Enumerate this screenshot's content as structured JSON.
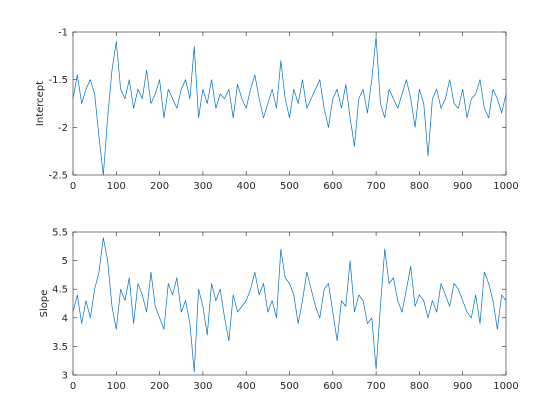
{
  "figure": {
    "line_color": "#0072bd",
    "axis_color": "#262626",
    "background": "#ffffff"
  },
  "chart_data": [
    {
      "type": "line",
      "title": "",
      "xlabel": "",
      "ylabel": "Intercept",
      "xlim": [
        0,
        1000
      ],
      "ylim": [
        -2.5,
        -1
      ],
      "xticks": [
        0,
        100,
        200,
        300,
        400,
        500,
        600,
        700,
        800,
        900,
        1000
      ],
      "xtick_labels": [
        "0",
        "100",
        "200",
        "300",
        "400",
        "500",
        "600",
        "700",
        "800",
        "900",
        "1000"
      ],
      "yticks": [
        -2.5,
        -2,
        -1.5,
        -1
      ],
      "ytick_labels": [
        "-2.5",
        "-2",
        "-1.5",
        "-1"
      ],
      "grid": false,
      "series": [
        {
          "color": "#0072bd",
          "x": [
            0,
            10,
            20,
            30,
            40,
            50,
            60,
            70,
            80,
            90,
            100,
            110,
            120,
            130,
            140,
            150,
            160,
            170,
            180,
            190,
            200,
            210,
            220,
            230,
            240,
            250,
            260,
            270,
            280,
            290,
            300,
            310,
            320,
            330,
            340,
            350,
            360,
            370,
            380,
            390,
            400,
            410,
            420,
            430,
            440,
            450,
            460,
            470,
            480,
            490,
            500,
            510,
            520,
            530,
            540,
            550,
            560,
            570,
            580,
            590,
            600,
            610,
            620,
            630,
            640,
            650,
            660,
            670,
            680,
            690,
            700,
            710,
            720,
            730,
            740,
            750,
            760,
            770,
            780,
            790,
            800,
            810,
            820,
            830,
            840,
            850,
            860,
            870,
            880,
            890,
            900,
            910,
            920,
            930,
            940,
            950,
            960,
            970,
            980,
            990,
            1000
          ],
          "y": [
            -1.7,
            -1.45,
            -1.75,
            -1.6,
            -1.5,
            -1.65,
            -2.1,
            -2.5,
            -1.9,
            -1.4,
            -1.1,
            -1.6,
            -1.7,
            -1.5,
            -1.8,
            -1.6,
            -1.7,
            -1.4,
            -1.75,
            -1.65,
            -1.5,
            -1.9,
            -1.6,
            -1.7,
            -1.8,
            -1.6,
            -1.5,
            -1.7,
            -1.15,
            -1.9,
            -1.6,
            -1.75,
            -1.5,
            -1.8,
            -1.65,
            -1.7,
            -1.6,
            -1.9,
            -1.55,
            -1.7,
            -1.8,
            -1.6,
            -1.45,
            -1.7,
            -1.9,
            -1.75,
            -1.6,
            -1.8,
            -1.3,
            -1.7,
            -1.9,
            -1.6,
            -1.75,
            -1.5,
            -1.8,
            -1.7,
            -1.6,
            -1.5,
            -1.8,
            -2.0,
            -1.7,
            -1.6,
            -1.8,
            -1.55,
            -1.9,
            -2.2,
            -1.7,
            -1.6,
            -1.85,
            -1.5,
            -1.05,
            -1.75,
            -1.9,
            -1.6,
            -1.7,
            -1.8,
            -1.65,
            -1.5,
            -1.7,
            -2.0,
            -1.6,
            -1.75,
            -2.3,
            -1.7,
            -1.6,
            -1.8,
            -1.7,
            -1.5,
            -1.75,
            -1.8,
            -1.6,
            -1.9,
            -1.7,
            -1.65,
            -1.5,
            -1.8,
            -1.9,
            -1.6,
            -1.7,
            -1.85,
            -1.65
          ]
        }
      ]
    },
    {
      "type": "line",
      "title": "",
      "xlabel": "",
      "ylabel": "Slope",
      "xlim": [
        0,
        1000
      ],
      "ylim": [
        3,
        5.5
      ],
      "xticks": [
        0,
        100,
        200,
        300,
        400,
        500,
        600,
        700,
        800,
        900,
        1000
      ],
      "xtick_labels": [
        "0",
        "100",
        "200",
        "300",
        "400",
        "500",
        "600",
        "700",
        "800",
        "900",
        "1000"
      ],
      "yticks": [
        3,
        3.5,
        4,
        4.5,
        5,
        5.5
      ],
      "ytick_labels": [
        "3",
        "3.5",
        "4",
        "4.5",
        "5",
        "5.5"
      ],
      "grid": false,
      "series": [
        {
          "color": "#0072bd",
          "x": [
            0,
            10,
            20,
            30,
            40,
            50,
            60,
            70,
            80,
            90,
            100,
            110,
            120,
            130,
            140,
            150,
            160,
            170,
            180,
            190,
            200,
            210,
            220,
            230,
            240,
            250,
            260,
            270,
            280,
            290,
            300,
            310,
            320,
            330,
            340,
            350,
            360,
            370,
            380,
            390,
            400,
            410,
            420,
            430,
            440,
            450,
            460,
            470,
            480,
            490,
            500,
            510,
            520,
            530,
            540,
            550,
            560,
            570,
            580,
            590,
            600,
            610,
            620,
            630,
            640,
            650,
            660,
            670,
            680,
            690,
            700,
            710,
            720,
            730,
            740,
            750,
            760,
            770,
            780,
            790,
            800,
            810,
            820,
            830,
            840,
            850,
            860,
            870,
            880,
            890,
            900,
            910,
            920,
            930,
            940,
            950,
            960,
            970,
            980,
            990,
            1000
          ],
          "y": [
            4.1,
            4.4,
            3.9,
            4.3,
            4.0,
            4.5,
            4.8,
            5.4,
            5.0,
            4.2,
            3.8,
            4.5,
            4.3,
            4.7,
            3.9,
            4.6,
            4.4,
            4.1,
            4.8,
            4.2,
            4.0,
            3.8,
            4.6,
            4.4,
            4.7,
            4.1,
            4.3,
            3.9,
            3.05,
            4.5,
            4.2,
            3.7,
            4.6,
            4.3,
            4.5,
            4.0,
            3.6,
            4.4,
            4.1,
            4.2,
            4.3,
            4.5,
            4.8,
            4.4,
            4.6,
            4.1,
            4.3,
            4.0,
            5.2,
            4.7,
            4.6,
            4.4,
            3.9,
            4.3,
            4.8,
            4.5,
            4.2,
            4.0,
            4.5,
            4.6,
            4.1,
            3.6,
            4.3,
            4.2,
            5.0,
            4.1,
            4.4,
            4.3,
            3.9,
            4.0,
            3.1,
            4.2,
            5.2,
            4.6,
            4.7,
            4.3,
            4.1,
            4.5,
            4.9,
            4.2,
            4.4,
            4.3,
            4.0,
            4.3,
            4.1,
            4.6,
            4.4,
            4.2,
            4.6,
            4.5,
            4.3,
            4.1,
            4.0,
            4.4,
            3.9,
            4.8,
            4.6,
            4.3,
            3.8,
            4.4,
            4.3
          ]
        }
      ]
    }
  ]
}
